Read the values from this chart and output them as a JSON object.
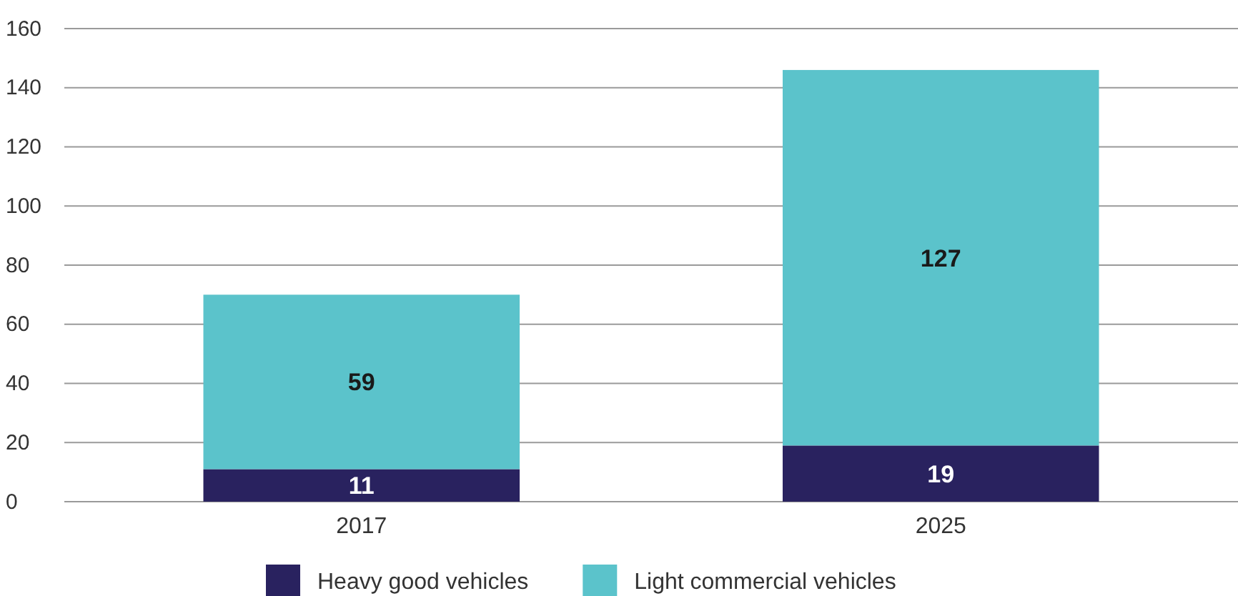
{
  "chart_data": {
    "type": "bar",
    "stacked": true,
    "categories": [
      "2017",
      "2025"
    ],
    "series": [
      {
        "name": "Heavy good vehicles",
        "color": "#29225f",
        "values": [
          11,
          19
        ]
      },
      {
        "name": "Light commercial vehicles",
        "color": "#5bc3cb",
        "values": [
          59,
          127
        ]
      }
    ],
    "ylim": [
      0,
      160
    ],
    "yticks": [
      0,
      20,
      40,
      60,
      80,
      100,
      120,
      140,
      160
    ],
    "grid": "y",
    "legend": "bottom",
    "data_labels": true
  }
}
